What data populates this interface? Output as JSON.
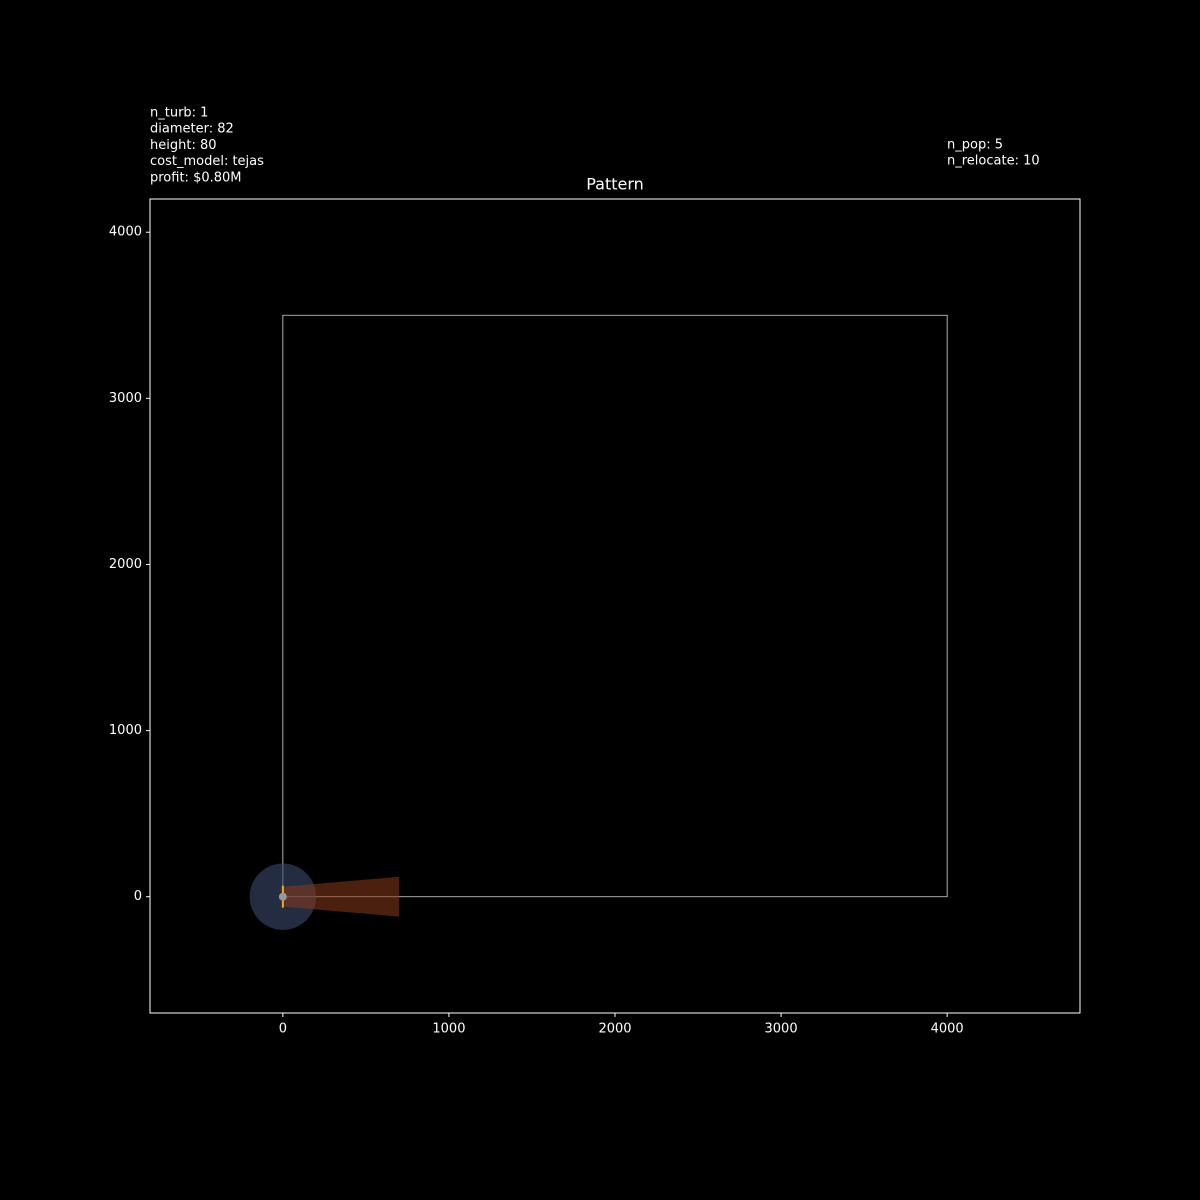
{
  "chart_data": {
    "type": "scatter",
    "title": "Pattern",
    "annotations_left": [
      "n_turb: 1",
      "diameter: 82",
      "height: 80",
      "cost_model: tejas",
      "profit: $0.80M"
    ],
    "annotations_right": [
      "n_pop: 5",
      "n_relocate: 10"
    ],
    "xlim": [
      -800,
      4800
    ],
    "ylim": [
      -700,
      4200
    ],
    "xticks": [
      0,
      1000,
      2000,
      3000,
      4000
    ],
    "yticks": [
      0,
      1000,
      2000,
      3000,
      4000
    ],
    "boundary": {
      "x": [
        0,
        4000,
        4000,
        0,
        0
      ],
      "y": [
        0,
        0,
        3500,
        3500,
        0
      ],
      "color": "#dddddd"
    },
    "series": [
      {
        "x": [
          0
        ],
        "y": [
          0
        ],
        "color": "#999999"
      }
    ],
    "zone_radius": 200,
    "zone_color": "#3a4a6b",
    "wake": {
      "length": 700,
      "start_halfwidth": 60,
      "end_halfwidth": 120,
      "color": "#8b3a1a"
    },
    "rotor_color": "#f5a623"
  }
}
